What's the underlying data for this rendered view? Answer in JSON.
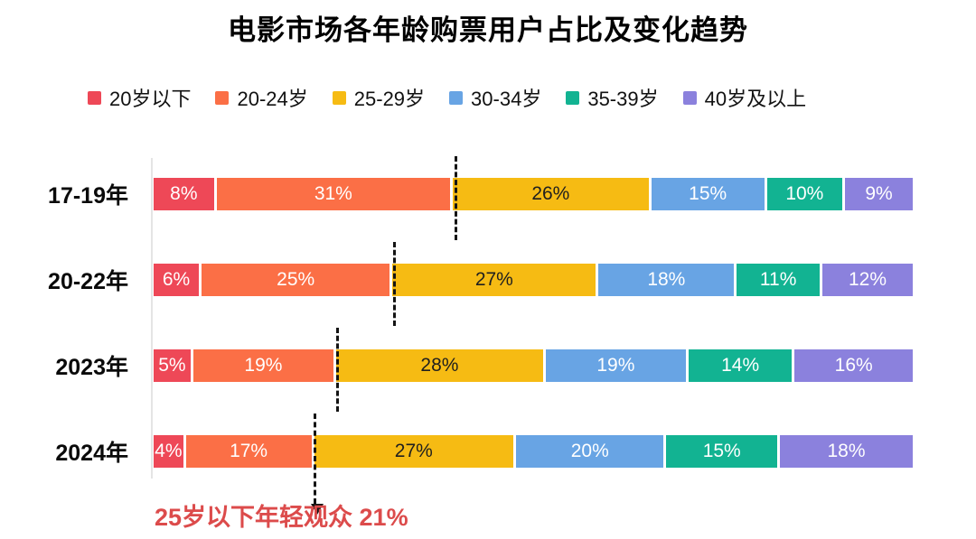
{
  "page": {
    "title": "电影市场各年龄购票用户占比及变化趋势"
  },
  "chart_data": {
    "type": "bar",
    "variant": "horizontal-stacked-percentage",
    "title": "电影市场各年龄购票用户占比及变化趋势",
    "legend_position": "top",
    "categories": [
      "17-19年",
      "20-22年",
      "2023年",
      "2024年"
    ],
    "series": [
      {
        "name": "20岁以下",
        "color": "#EE4857",
        "label_color": "#ffffff",
        "values": [
          8,
          6,
          5,
          4
        ]
      },
      {
        "name": "20-24岁",
        "color": "#FB6F46",
        "label_color": "#ffffff",
        "values": [
          31,
          25,
          19,
          17
        ]
      },
      {
        "name": "25-29岁",
        "color": "#F6BB13",
        "label_color": "#1f1f1f",
        "values": [
          26,
          27,
          28,
          27
        ]
      },
      {
        "name": "30-34岁",
        "color": "#68A4E4",
        "label_color": "#ffffff",
        "values": [
          15,
          18,
          19,
          20
        ]
      },
      {
        "name": "35-39岁",
        "color": "#12B392",
        "label_color": "#ffffff",
        "values": [
          10,
          11,
          14,
          15
        ]
      },
      {
        "name": "40岁及以上",
        "color": "#8B81DD",
        "label_color": "#ffffff",
        "values": [
          9,
          12,
          16,
          18
        ]
      }
    ],
    "value_suffix": "%",
    "guides": {
      "description": "dashed vertical line after cumulative share of first two series (under-25 audience)",
      "after_series_count": 2,
      "cumulative_marks": [
        39,
        31,
        24,
        21
      ],
      "arrow_on_last_row": true,
      "line_color": "#141414"
    },
    "annotation": {
      "text": "25岁以下年轻观众 21%",
      "color": "#DC4B4B"
    }
  }
}
